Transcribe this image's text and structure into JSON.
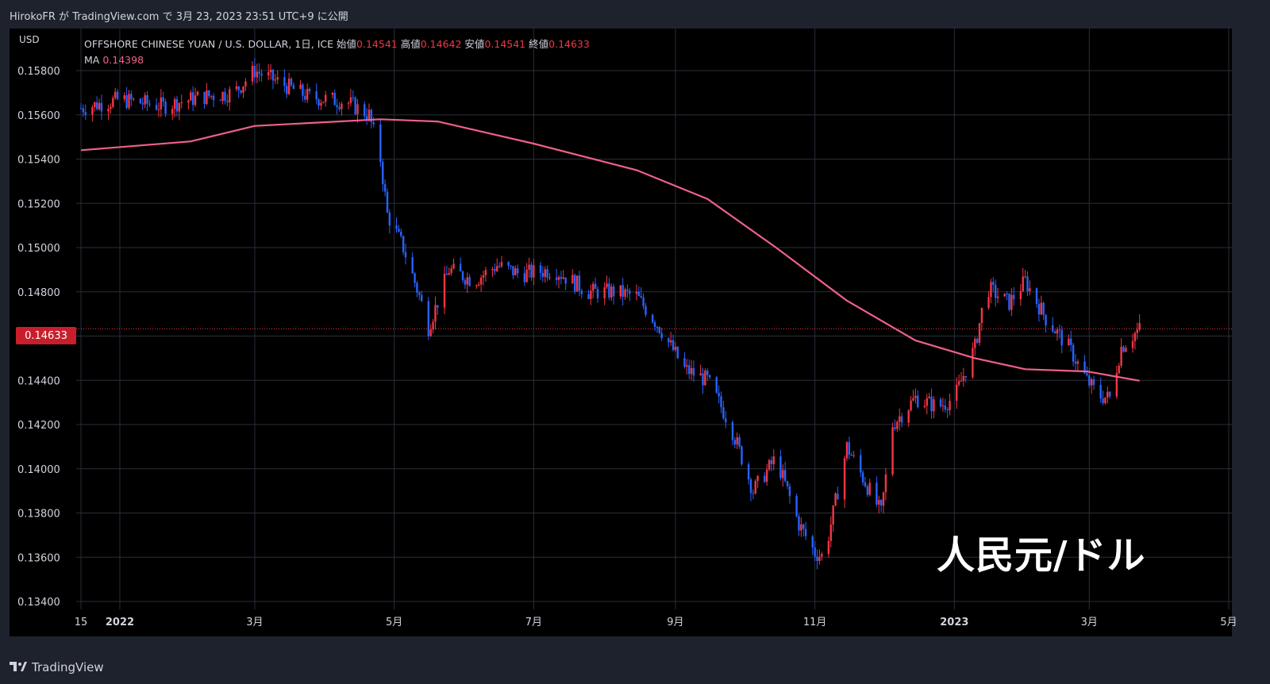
{
  "header": {
    "attribution": "HirokoFR が TradingView.com で 3月 23, 2023 23:51 UTC+9 に公開"
  },
  "footer": {
    "brand": "TradingView"
  },
  "legend": {
    "symbol": "OFFSHORE CHINESE YUAN / U.S. DOLLAR, 1日, ICE",
    "open_label": "始値",
    "open": "0.14541",
    "high_label": "高値",
    "high": "0.14642",
    "low_label": "安値",
    "low": "0.14541",
    "close_label": "終値",
    "close": "0.14633",
    "ma_label": "MA",
    "ma_value": "0.14398"
  },
  "annotation": "人民元/ドル",
  "current_price": "0.14633",
  "colors": {
    "up": "#f23645",
    "down": "#2962ff",
    "ma": "#f0608a",
    "background": "#000000",
    "grid": "#2a2e39"
  },
  "chart_data": {
    "type": "candlestick",
    "currency_label": "USD",
    "ylim": [
      0.134,
      0.159
    ],
    "y_ticks": [
      "0.15800",
      "0.15600",
      "0.15400",
      "0.15200",
      "0.15000",
      "0.14800",
      "0.14600",
      "0.14400",
      "0.14200",
      "0.14000",
      "0.13800",
      "0.13600",
      "0.13400"
    ],
    "x_ticks": [
      "15",
      "2022",
      "3月",
      "5月",
      "7月",
      "9月",
      "11月",
      "2023",
      "3月",
      "5月"
    ],
    "close_series": [
      {
        "date": "2021-12-15",
        "v": 0.1563
      },
      {
        "date": "2022-01-01",
        "v": 0.1567
      },
      {
        "date": "2022-01-20",
        "v": 0.1564
      },
      {
        "date": "2022-02-05",
        "v": 0.1568
      },
      {
        "date": "2022-02-20",
        "v": 0.157
      },
      {
        "date": "2022-03-01",
        "v": 0.158
      },
      {
        "date": "2022-03-15",
        "v": 0.1573
      },
      {
        "date": "2022-03-25",
        "v": 0.1568
      },
      {
        "date": "2022-04-10",
        "v": 0.1566
      },
      {
        "date": "2022-04-20",
        "v": 0.156
      },
      {
        "date": "2022-04-25",
        "v": 0.154
      },
      {
        "date": "2022-04-28",
        "v": 0.1515
      },
      {
        "date": "2022-05-05",
        "v": 0.15
      },
      {
        "date": "2022-05-12",
        "v": 0.1478
      },
      {
        "date": "2022-05-16",
        "v": 0.1464
      },
      {
        "date": "2022-05-25",
        "v": 0.149
      },
      {
        "date": "2022-06-05",
        "v": 0.1485
      },
      {
        "date": "2022-06-15",
        "v": 0.1492
      },
      {
        "date": "2022-06-25",
        "v": 0.1488
      },
      {
        "date": "2022-07-10",
        "v": 0.149
      },
      {
        "date": "2022-07-25",
        "v": 0.148
      },
      {
        "date": "2022-08-05",
        "v": 0.148
      },
      {
        "date": "2022-08-15",
        "v": 0.1478
      },
      {
        "date": "2022-08-25",
        "v": 0.1464
      },
      {
        "date": "2022-09-05",
        "v": 0.1445
      },
      {
        "date": "2022-09-15",
        "v": 0.144
      },
      {
        "date": "2022-09-25",
        "v": 0.142
      },
      {
        "date": "2022-10-05",
        "v": 0.139
      },
      {
        "date": "2022-10-15",
        "v": 0.1405
      },
      {
        "date": "2022-10-25",
        "v": 0.1375
      },
      {
        "date": "2022-11-01",
        "v": 0.1362
      },
      {
        "date": "2022-11-05",
        "v": 0.136
      },
      {
        "date": "2022-11-10",
        "v": 0.1385
      },
      {
        "date": "2022-11-15",
        "v": 0.141
      },
      {
        "date": "2022-11-25",
        "v": 0.139
      },
      {
        "date": "2022-11-30",
        "v": 0.138
      },
      {
        "date": "2022-12-05",
        "v": 0.142
      },
      {
        "date": "2022-12-15",
        "v": 0.1432
      },
      {
        "date": "2022-12-25",
        "v": 0.1428
      },
      {
        "date": "2023-01-01",
        "v": 0.1432
      },
      {
        "date": "2023-01-10",
        "v": 0.1455
      },
      {
        "date": "2023-01-15",
        "v": 0.1482
      },
      {
        "date": "2023-01-25",
        "v": 0.1475
      },
      {
        "date": "2023-02-01",
        "v": 0.1485
      },
      {
        "date": "2023-02-10",
        "v": 0.1468
      },
      {
        "date": "2023-02-20",
        "v": 0.1455
      },
      {
        "date": "2023-02-28",
        "v": 0.144
      },
      {
        "date": "2023-03-05",
        "v": 0.1433
      },
      {
        "date": "2023-03-10",
        "v": 0.1432
      },
      {
        "date": "2023-03-15",
        "v": 0.1455
      },
      {
        "date": "2023-03-23",
        "v": 0.14633
      }
    ],
    "ma_series": [
      {
        "date": "2021-12-15",
        "v": 0.1544
      },
      {
        "date": "2022-02-01",
        "v": 0.1548
      },
      {
        "date": "2022-03-01",
        "v": 0.1555
      },
      {
        "date": "2022-04-25",
        "v": 0.1558
      },
      {
        "date": "2022-05-20",
        "v": 0.1557
      },
      {
        "date": "2022-07-01",
        "v": 0.1547
      },
      {
        "date": "2022-08-15",
        "v": 0.1535
      },
      {
        "date": "2022-09-15",
        "v": 0.1522
      },
      {
        "date": "2022-10-15",
        "v": 0.15
      },
      {
        "date": "2022-11-15",
        "v": 0.1476
      },
      {
        "date": "2022-12-15",
        "v": 0.1458
      },
      {
        "date": "2023-01-10",
        "v": 0.145
      },
      {
        "date": "2023-02-01",
        "v": 0.1445
      },
      {
        "date": "2023-02-28",
        "v": 0.1444
      },
      {
        "date": "2023-03-23",
        "v": 0.14398
      }
    ]
  }
}
